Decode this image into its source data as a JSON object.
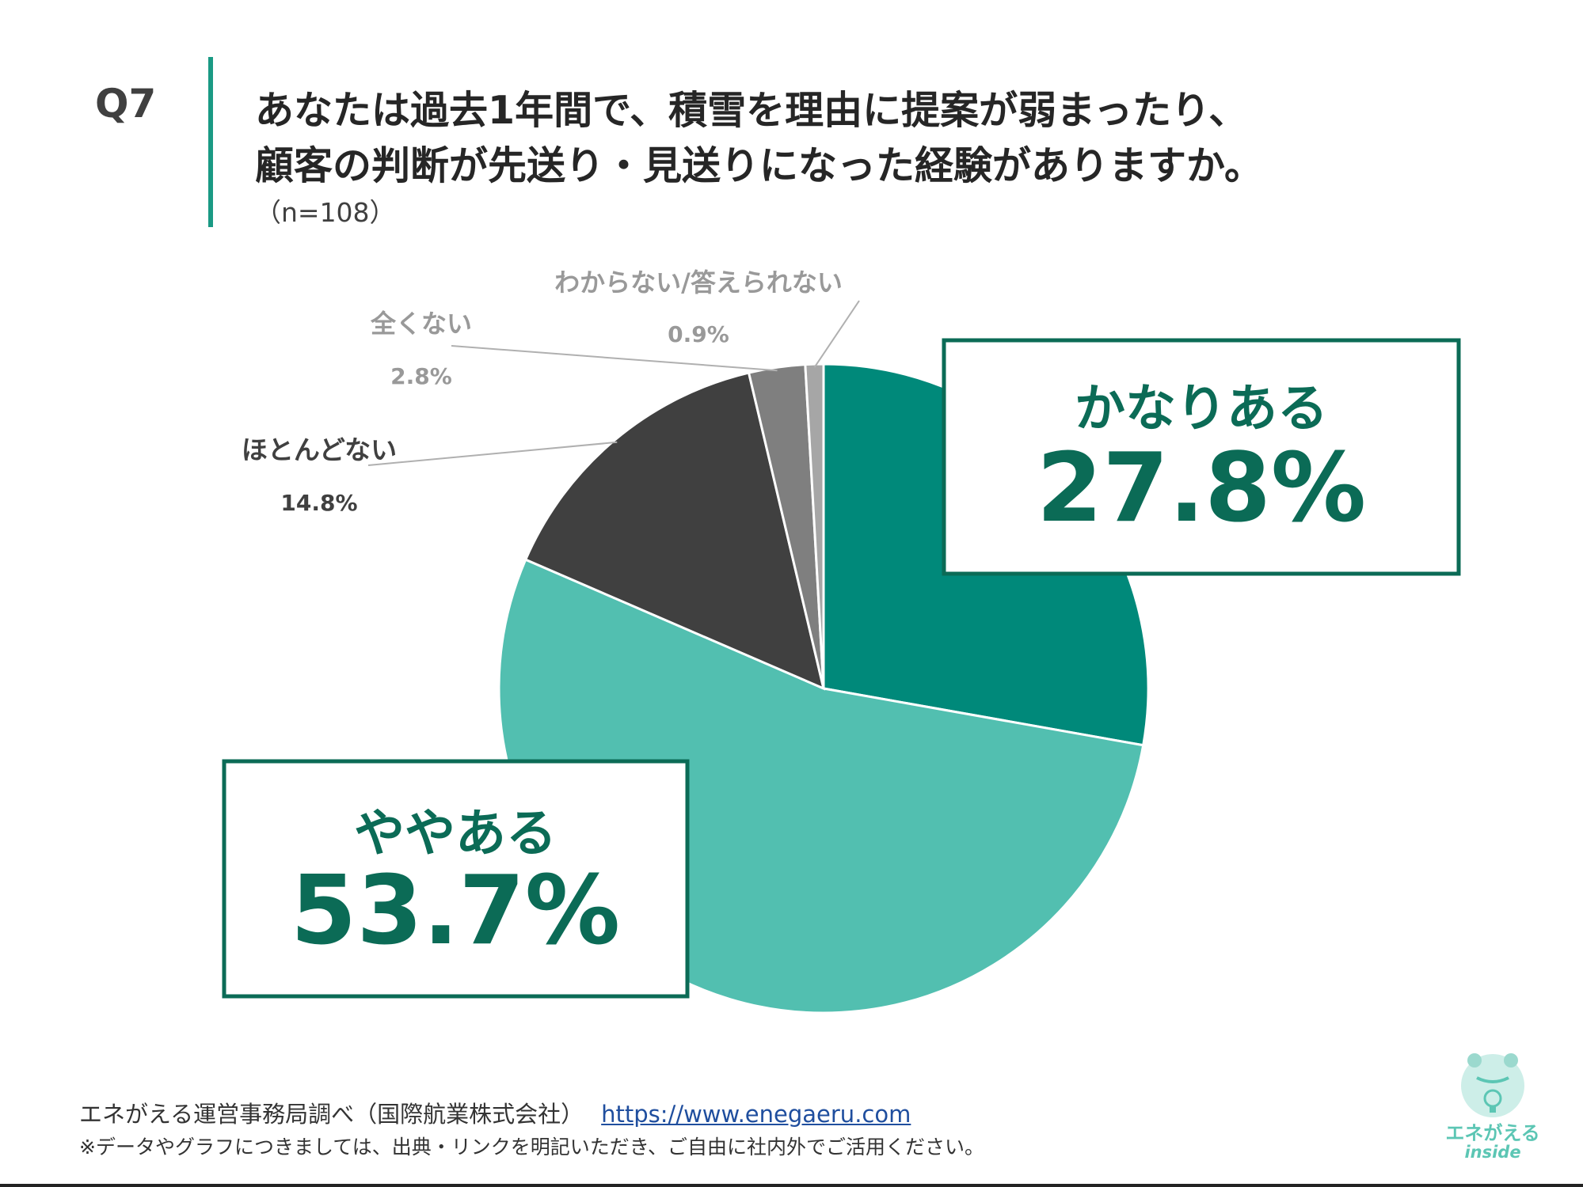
{
  "header": {
    "question_number": "Q7",
    "question_line1": "あなたは過去1年間で、積雪を理由に提案が弱まったり、",
    "question_line2": "顧客の判断が先送り・見送りになった経験がありますか。",
    "sample_size": "（n=108）"
  },
  "chart_data": {
    "type": "pie",
    "title": "",
    "slices": [
      {
        "label": "かなりある",
        "value": 27.8,
        "value_label": "27.8%",
        "color": "#00897a"
      },
      {
        "label": "ややある",
        "value": 53.7,
        "value_label": "53.7%",
        "color": "#52bfb0"
      },
      {
        "label": "ほとんどない",
        "value": 14.8,
        "value_label": "14.8%",
        "color": "#404040"
      },
      {
        "label": "全くない",
        "value": 2.8,
        "value_label": "2.8%",
        "color": "#7f7f7f"
      },
      {
        "label": "わからない/答えられない",
        "value": 0.9,
        "value_label": "0.9%",
        "color": "#a6a6a6"
      }
    ],
    "start_angle": "12 o'clock",
    "direction": "clockwise"
  },
  "footer": {
    "source": "エネがえる運営事務局調べ（国際航業株式会社）",
    "url": "https://www.enegaeru.com",
    "note": "※データやグラフにつきましては、出典・リンクを明記いただき、ご自由に社内外でご活用ください。"
  },
  "logo": {
    "name": "エネがえる",
    "sub": "inside",
    "icon": "frog-lightbulb-icon"
  }
}
